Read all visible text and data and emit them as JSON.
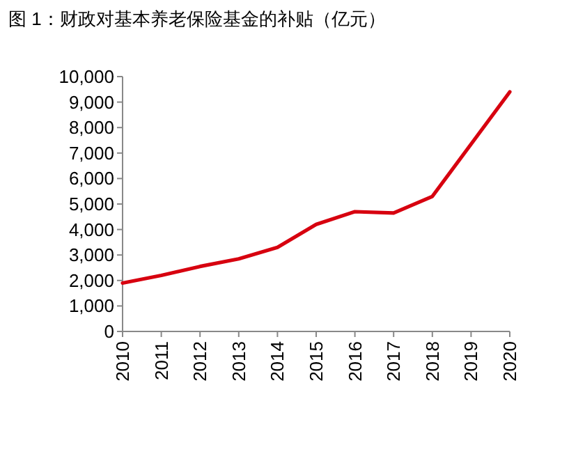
{
  "chart_data": {
    "type": "line",
    "title": "图 1：财政对基本养老保险基金的补贴（亿元）",
    "categories": [
      "2010",
      "2011",
      "2012",
      "2013",
      "2014",
      "2015",
      "2016",
      "2017",
      "2018",
      "2019",
      "2020"
    ],
    "series": [
      {
        "color": "#d7000f",
        "values": [
          1900,
          2200,
          2550,
          2850,
          3300,
          4200,
          4700,
          4650,
          5300,
          7350,
          9400
        ]
      }
    ],
    "ylim": [
      0,
      10000
    ],
    "yticks": [
      0,
      {
        "value": 1000,
        "label": "1,000"
      },
      {
        "value": 2000,
        "label": "2,000"
      },
      {
        "value": 3000,
        "label": "3,000"
      },
      {
        "value": 4000,
        "label": "4,000"
      },
      {
        "value": 5000,
        "label": "5,000"
      },
      {
        "value": 6000,
        "label": "6,000"
      },
      {
        "value": 7000,
        "label": "7,000"
      },
      {
        "value": 8000,
        "label": "8,000"
      },
      {
        "value": 9000,
        "label": "9,000"
      },
      {
        "value": 10000,
        "label": "10,000"
      }
    ],
    "line_style": "solid"
  }
}
